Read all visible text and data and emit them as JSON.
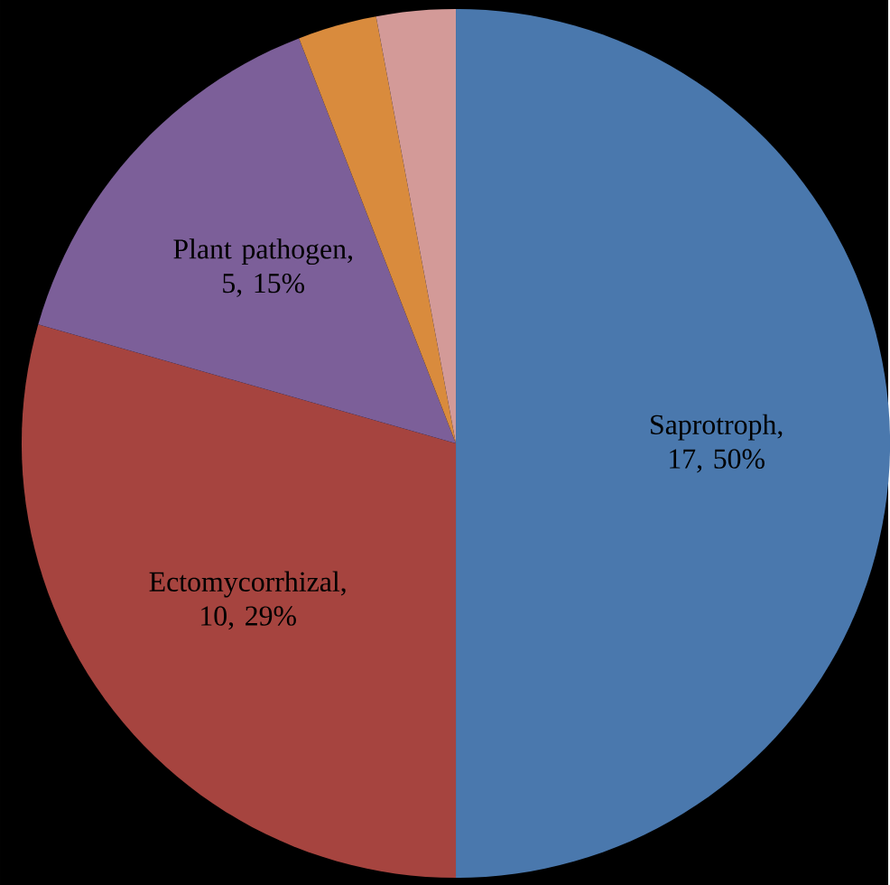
{
  "chart_data": {
    "type": "pie",
    "categories": [
      "Saprotroph",
      "Ectomycorrhizal",
      "Plant pathogen",
      null,
      null
    ],
    "values": [
      17,
      10,
      5,
      1,
      1
    ],
    "value_labels": [
      ", 17, 50%",
      ", 10, 29%",
      ", 5, 15%",
      null,
      null
    ],
    "colors": [
      "#4a78ad",
      "#a6443f",
      "#7c5f99",
      "#d98b3d",
      "#d39a98"
    ]
  }
}
